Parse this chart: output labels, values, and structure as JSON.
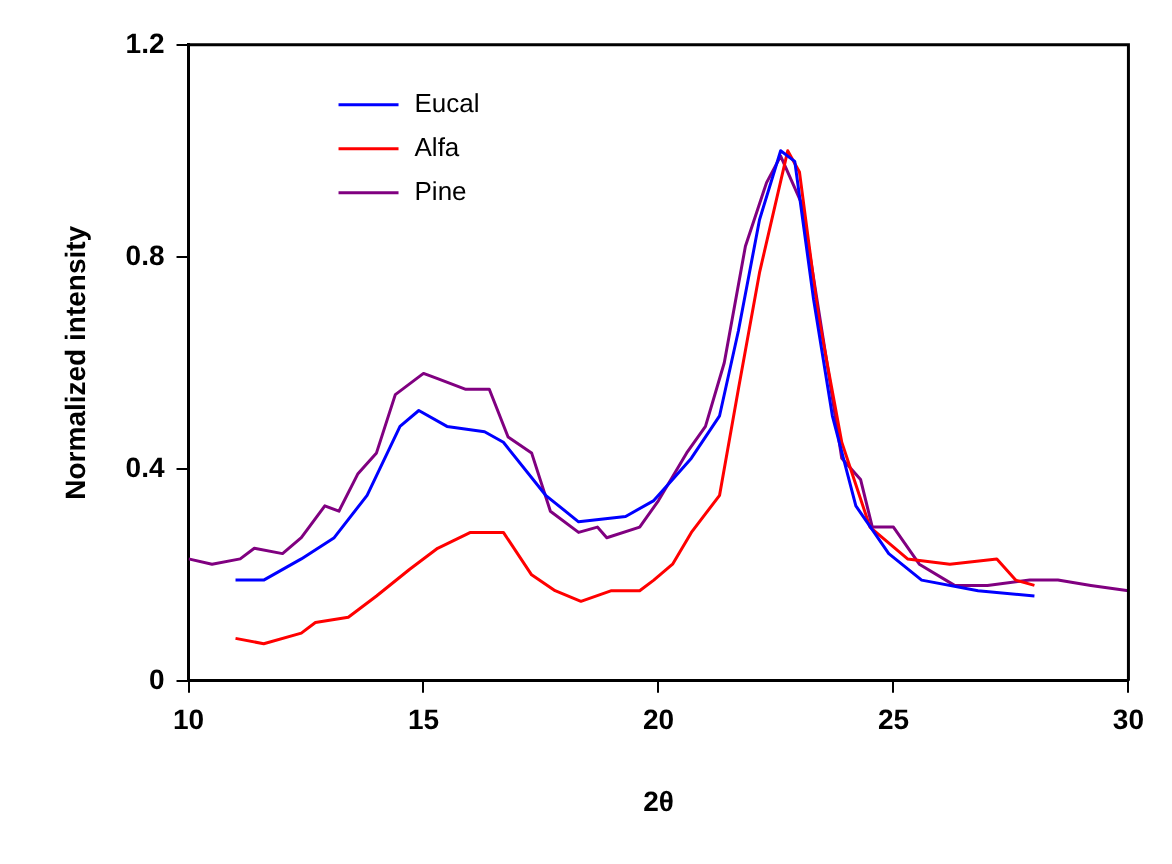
{
  "chart_data": {
    "type": "line",
    "xlabel": "2θ",
    "ylabel": "Normalized intensity",
    "xlim": [
      10,
      30
    ],
    "xticks": [
      10,
      15,
      20,
      25,
      30
    ],
    "ylim": [
      0,
      1.2
    ],
    "yticks": [
      {
        "value": 0,
        "label": "0"
      },
      0.4,
      0.8,
      1.2
    ],
    "grid": false,
    "legend": "top left",
    "marker": "none",
    "line_style": "solid",
    "series": [
      {
        "name": "Eucal",
        "color": "#0000ff",
        "x": [
          11,
          11.6,
          12.4,
          13.1,
          13.8,
          14.5,
          14.9,
          15.5,
          16.3,
          16.7,
          17.6,
          18.3,
          19.3,
          19.9,
          20.3,
          20.7,
          21.3,
          21.7,
          22.15,
          22.6,
          22.9,
          23.3,
          23.7,
          24.2,
          24.9,
          25.6,
          26.8,
          28
        ],
        "values": [
          0.19,
          0.19,
          0.23,
          0.27,
          0.35,
          0.48,
          0.51,
          0.48,
          0.47,
          0.45,
          0.35,
          0.3,
          0.31,
          0.34,
          0.38,
          0.42,
          0.5,
          0.66,
          0.87,
          1.0,
          0.98,
          0.72,
          0.5,
          0.33,
          0.24,
          0.19,
          0.17,
          0.16
        ]
      },
      {
        "name": "Alfa",
        "color": "#ff0000",
        "x": [
          11,
          11.6,
          12.4,
          12.7,
          13.4,
          14,
          14.7,
          15.3,
          16,
          16.7,
          17.3,
          17.8,
          18.35,
          19,
          19.6,
          19.9,
          20.3,
          20.7,
          21.3,
          21.7,
          22.15,
          22.75,
          23,
          23.4,
          23.9,
          24.5,
          25.3,
          26.2,
          27.2,
          27.6,
          28
        ],
        "values": [
          0.08,
          0.07,
          0.09,
          0.11,
          0.12,
          0.16,
          0.21,
          0.25,
          0.28,
          0.28,
          0.2,
          0.17,
          0.15,
          0.17,
          0.17,
          0.19,
          0.22,
          0.28,
          0.35,
          0.55,
          0.77,
          1.0,
          0.96,
          0.69,
          0.45,
          0.29,
          0.23,
          0.22,
          0.23,
          0.19,
          0.18
        ]
      },
      {
        "name": "Pine",
        "color": "#800080",
        "x": [
          10,
          10.5,
          11.1,
          11.4,
          12,
          12.4,
          12.9,
          13.2,
          13.6,
          14,
          14.4,
          15,
          15.3,
          15.9,
          16.4,
          16.8,
          17.3,
          17.7,
          18.3,
          18.7,
          18.9,
          19.6,
          20,
          20.6,
          21,
          21.4,
          21.85,
          22.3,
          22.6,
          23.05,
          23.55,
          23.9,
          24.3,
          24.55,
          25,
          25.55,
          26.3,
          27,
          27.9,
          28.5,
          29.2,
          30
        ],
        "values": [
          0.23,
          0.22,
          0.23,
          0.25,
          0.24,
          0.27,
          0.33,
          0.32,
          0.39,
          0.43,
          0.54,
          0.58,
          0.57,
          0.55,
          0.55,
          0.46,
          0.43,
          0.32,
          0.28,
          0.29,
          0.27,
          0.29,
          0.34,
          0.43,
          0.48,
          0.6,
          0.82,
          0.94,
          0.99,
          0.9,
          0.62,
          0.42,
          0.38,
          0.29,
          0.29,
          0.22,
          0.18,
          0.18,
          0.19,
          0.19,
          0.18,
          0.17
        ]
      }
    ]
  }
}
